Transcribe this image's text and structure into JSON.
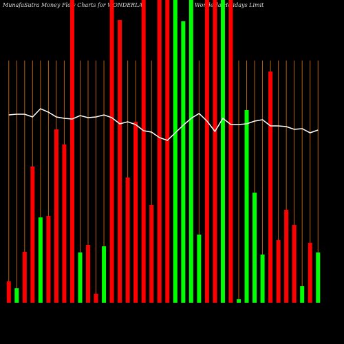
{
  "chart_data": {
    "type": "bar",
    "title": "MunafaSutra  Money Flow  Charts for WONDERLA",
    "subtitle": "Wonderla Holidays Limit",
    "categories": [
      null,
      null,
      null,
      null,
      null,
      null,
      null,
      null,
      null,
      null,
      null,
      null,
      null,
      null,
      null,
      null,
      null,
      null,
      null,
      null,
      null,
      null,
      null,
      null,
      null,
      null,
      null,
      null,
      null,
      null,
      null,
      null,
      null,
      null,
      null,
      null,
      null,
      null,
      null,
      null
    ],
    "series": [
      {
        "color": "mixed",
        "colors": [
          "#ff0000",
          "#00ff00",
          "#ff0000",
          "#ff0000",
          "#00ff00",
          "#ff0000",
          "#ff0000",
          "#ff0000",
          "#ff0000",
          "#00ff00",
          "#ff0000",
          "#ff0000",
          "#00ff00",
          "#ff0000",
          "#ff0000",
          "#ff0000",
          "#ff0000",
          "#ff0000",
          "#ff0000",
          "#ff0000",
          "#ff0000",
          "#00ff00",
          "#00ff00",
          "#00ff00",
          "#00ff00",
          "#ff0000",
          "#ff0000",
          "#00ff00",
          "#ff0000",
          "#00ff00",
          "#00ff00",
          "#00ff00",
          "#00ff00",
          "#ff0000",
          "#ff0000",
          "#ff0000",
          "#ff0000",
          "#00ff00",
          "#ff0000",
          "#00ff00"
        ],
        "values": [
          31,
          21,
          74,
          198,
          124,
          126,
          252,
          230,
          440,
          73,
          84,
          13,
          82,
          440,
          411,
          182,
          263,
          440,
          142,
          440,
          440,
          440,
          409,
          440,
          99,
          440,
          440,
          440,
          440,
          5,
          280,
          160,
          70,
          336,
          91,
          135,
          113,
          24,
          87,
          73
        ]
      },
      {
        "color": "#ffffff",
        "values": [
          273,
          274,
          274,
          270,
          282,
          277,
          270,
          268,
          267,
          272,
          269,
          270,
          273,
          269,
          260,
          263,
          259,
          250,
          248,
          240,
          236,
          247,
          258,
          268,
          275,
          264,
          249,
          268,
          259,
          259,
          260,
          264,
          266,
          257,
          257,
          256,
          252,
          253,
          247,
          251
        ]
      }
    ],
    "ylim": [
      0,
      440
    ],
    "grid": true,
    "grid_color": "#b8600a"
  }
}
